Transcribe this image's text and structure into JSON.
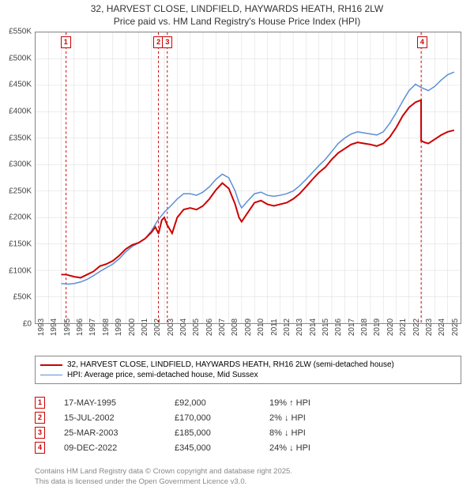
{
  "title": {
    "line1": "32, HARVEST CLOSE, LINDFIELD, HAYWARDS HEATH, RH16 2LW",
    "line2": "Price paid vs. HM Land Registry's House Price Index (HPI)"
  },
  "chart": {
    "type": "line",
    "background_color": "#ffffff",
    "border_color": "#888888",
    "x_range": [
      1993,
      2026
    ],
    "y_range": [
      0,
      550000
    ],
    "y_ticks": [
      0,
      50000,
      100000,
      150000,
      200000,
      250000,
      300000,
      350000,
      400000,
      450000,
      500000,
      550000
    ],
    "y_tick_labels": [
      "£0",
      "£50K",
      "£100K",
      "£150K",
      "£200K",
      "£250K",
      "£300K",
      "£350K",
      "£400K",
      "£450K",
      "£500K",
      "£550K"
    ],
    "x_ticks": [
      1993,
      1994,
      1995,
      1996,
      1997,
      1998,
      1999,
      2000,
      2001,
      2002,
      2003,
      2004,
      2005,
      2006,
      2007,
      2008,
      2009,
      2010,
      2011,
      2012,
      2013,
      2014,
      2015,
      2016,
      2017,
      2018,
      2019,
      2020,
      2021,
      2022,
      2023,
      2024,
      2025
    ],
    "grid_color": "#d9d9d9",
    "marker_line_color": "#cc0000",
    "marker_box_border": "#cc0000",
    "marker_box_text": "#cc0000",
    "markers": [
      {
        "n": "1",
        "x": 1995.37
      },
      {
        "n": "2",
        "x": 2002.54
      },
      {
        "n": "3",
        "x": 2003.23
      },
      {
        "n": "4",
        "x": 2022.94
      }
    ],
    "series": [
      {
        "name": "price_paid",
        "color": "#cc0000",
        "width": 2,
        "points": [
          [
            1995.0,
            92000
          ],
          [
            1995.37,
            92000
          ],
          [
            1995.38,
            92000
          ],
          [
            1996.0,
            88000
          ],
          [
            1996.5,
            86000
          ],
          [
            1997.0,
            92000
          ],
          [
            1997.5,
            98000
          ],
          [
            1998.0,
            108000
          ],
          [
            1998.5,
            112000
          ],
          [
            1999.0,
            118000
          ],
          [
            1999.5,
            128000
          ],
          [
            2000.0,
            140000
          ],
          [
            2000.5,
            148000
          ],
          [
            2001.0,
            152000
          ],
          [
            2001.5,
            160000
          ],
          [
            2002.0,
            172000
          ],
          [
            2002.3,
            182000
          ],
          [
            2002.54,
            170000
          ],
          [
            2002.55,
            170000
          ],
          [
            2002.8,
            195000
          ],
          [
            2003.0,
            200000
          ],
          [
            2003.23,
            185000
          ],
          [
            2003.24,
            185000
          ],
          [
            2003.6,
            170000
          ],
          [
            2004.0,
            200000
          ],
          [
            2004.5,
            215000
          ],
          [
            2005.0,
            218000
          ],
          [
            2005.5,
            215000
          ],
          [
            2006.0,
            222000
          ],
          [
            2006.5,
            235000
          ],
          [
            2007.0,
            252000
          ],
          [
            2007.5,
            265000
          ],
          [
            2008.0,
            255000
          ],
          [
            2008.5,
            225000
          ],
          [
            2008.8,
            200000
          ],
          [
            2009.0,
            192000
          ],
          [
            2009.5,
            210000
          ],
          [
            2010.0,
            228000
          ],
          [
            2010.5,
            232000
          ],
          [
            2011.0,
            225000
          ],
          [
            2011.5,
            222000
          ],
          [
            2012.0,
            225000
          ],
          [
            2012.5,
            228000
          ],
          [
            2013.0,
            235000
          ],
          [
            2013.5,
            245000
          ],
          [
            2014.0,
            258000
          ],
          [
            2014.5,
            272000
          ],
          [
            2015.0,
            285000
          ],
          [
            2015.5,
            295000
          ],
          [
            2016.0,
            310000
          ],
          [
            2016.5,
            322000
          ],
          [
            2017.0,
            330000
          ],
          [
            2017.5,
            338000
          ],
          [
            2018.0,
            342000
          ],
          [
            2018.5,
            340000
          ],
          [
            2019.0,
            338000
          ],
          [
            2019.5,
            335000
          ],
          [
            2020.0,
            340000
          ],
          [
            2020.5,
            352000
          ],
          [
            2021.0,
            370000
          ],
          [
            2021.5,
            392000
          ],
          [
            2022.0,
            408000
          ],
          [
            2022.5,
            418000
          ],
          [
            2022.93,
            422000
          ],
          [
            2022.94,
            345000
          ],
          [
            2022.95,
            345000
          ],
          [
            2023.2,
            342000
          ],
          [
            2023.5,
            340000
          ],
          [
            2024.0,
            348000
          ],
          [
            2024.5,
            356000
          ],
          [
            2025.0,
            362000
          ],
          [
            2025.5,
            365000
          ]
        ]
      },
      {
        "name": "hpi",
        "color": "#5b8fd6",
        "width": 1.5,
        "points": [
          [
            1995.0,
            75000
          ],
          [
            1995.5,
            74000
          ],
          [
            1996.0,
            75000
          ],
          [
            1996.5,
            78000
          ],
          [
            1997.0,
            83000
          ],
          [
            1997.5,
            90000
          ],
          [
            1998.0,
            98000
          ],
          [
            1998.5,
            105000
          ],
          [
            1999.0,
            112000
          ],
          [
            1999.5,
            122000
          ],
          [
            2000.0,
            135000
          ],
          [
            2000.5,
            145000
          ],
          [
            2001.0,
            152000
          ],
          [
            2001.5,
            160000
          ],
          [
            2002.0,
            175000
          ],
          [
            2002.5,
            195000
          ],
          [
            2003.0,
            210000
          ],
          [
            2003.5,
            222000
          ],
          [
            2004.0,
            235000
          ],
          [
            2004.5,
            245000
          ],
          [
            2005.0,
            245000
          ],
          [
            2005.5,
            242000
          ],
          [
            2006.0,
            248000
          ],
          [
            2006.5,
            258000
          ],
          [
            2007.0,
            272000
          ],
          [
            2007.5,
            282000
          ],
          [
            2008.0,
            275000
          ],
          [
            2008.5,
            250000
          ],
          [
            2008.8,
            228000
          ],
          [
            2009.0,
            218000
          ],
          [
            2009.5,
            232000
          ],
          [
            2010.0,
            245000
          ],
          [
            2010.5,
            248000
          ],
          [
            2011.0,
            242000
          ],
          [
            2011.5,
            240000
          ],
          [
            2012.0,
            242000
          ],
          [
            2012.5,
            245000
          ],
          [
            2013.0,
            250000
          ],
          [
            2013.5,
            260000
          ],
          [
            2014.0,
            272000
          ],
          [
            2014.5,
            285000
          ],
          [
            2015.0,
            298000
          ],
          [
            2015.5,
            310000
          ],
          [
            2016.0,
            325000
          ],
          [
            2016.5,
            340000
          ],
          [
            2017.0,
            350000
          ],
          [
            2017.5,
            358000
          ],
          [
            2018.0,
            362000
          ],
          [
            2018.5,
            360000
          ],
          [
            2019.0,
            358000
          ],
          [
            2019.5,
            356000
          ],
          [
            2020.0,
            362000
          ],
          [
            2020.5,
            378000
          ],
          [
            2021.0,
            398000
          ],
          [
            2021.5,
            420000
          ],
          [
            2022.0,
            440000
          ],
          [
            2022.5,
            452000
          ],
          [
            2023.0,
            445000
          ],
          [
            2023.5,
            440000
          ],
          [
            2024.0,
            448000
          ],
          [
            2024.5,
            460000
          ],
          [
            2025.0,
            470000
          ],
          [
            2025.5,
            475000
          ]
        ]
      }
    ]
  },
  "legend": {
    "items": [
      {
        "color": "#cc0000",
        "width": 2,
        "label": "32, HARVEST CLOSE, LINDFIELD, HAYWARDS HEATH, RH16 2LW (semi-detached house)"
      },
      {
        "color": "#5b8fd6",
        "width": 1.5,
        "label": "HPI: Average price, semi-detached house, Mid Sussex"
      }
    ]
  },
  "sales": [
    {
      "n": "1",
      "date": "17-MAY-1995",
      "price": "£92,000",
      "diff": "19% ↑ HPI"
    },
    {
      "n": "2",
      "date": "15-JUL-2002",
      "price": "£170,000",
      "diff": "2% ↓ HPI"
    },
    {
      "n": "3",
      "date": "25-MAR-2003",
      "price": "£185,000",
      "diff": "8% ↓ HPI"
    },
    {
      "n": "4",
      "date": "09-DEC-2022",
      "price": "£345,000",
      "diff": "24% ↓ HPI"
    }
  ],
  "footer": {
    "line1": "Contains HM Land Registry data © Crown copyright and database right 2025.",
    "line2": "This data is licensed under the Open Government Licence v3.0."
  }
}
